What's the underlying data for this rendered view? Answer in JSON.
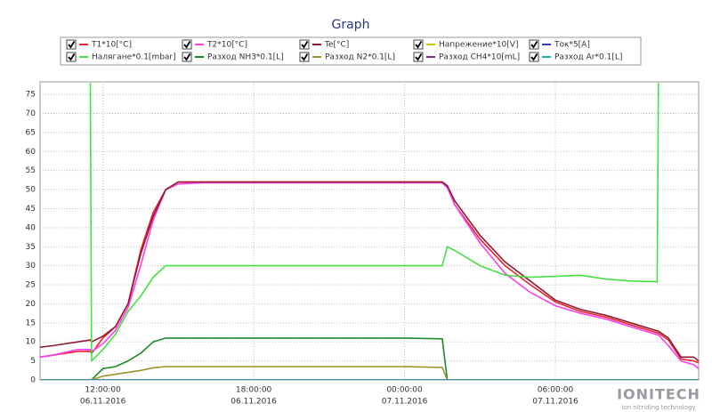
{
  "chart_data": {
    "type": "line",
    "title": "Graph",
    "x": [
      9.5,
      10,
      11,
      11.5,
      11.55,
      12,
      12.5,
      13,
      13.5,
      14,
      14.5,
      15,
      16,
      18,
      20,
      22,
      24,
      25.5,
      25.7,
      26,
      27,
      28,
      29,
      30,
      31,
      32,
      33,
      34,
      34.05,
      34.1,
      34.5,
      35,
      35.5,
      35.7
    ],
    "xlim": [
      9.5,
      35.7
    ],
    "xticks": [
      {
        "value": 12,
        "label": "12:00:00"
      },
      {
        "value": 18,
        "label": "18:00:00"
      },
      {
        "value": 24,
        "label": "00:00:00"
      },
      {
        "value": 30,
        "label": "06:00:00"
      }
    ],
    "xtick_dates": [
      "06.11.2016",
      "06.11.2016",
      "07.11.2016",
      "07.11.2016"
    ],
    "ylim": [
      0,
      78.3
    ],
    "yticks": [
      0,
      5,
      10,
      15,
      20,
      25,
      30,
      35,
      40,
      45,
      50,
      55,
      60,
      65,
      70,
      75
    ],
    "grid": true,
    "series": [
      {
        "name": "T1*10[°C]",
        "color": "#e8242c",
        "values": [
          6,
          6.5,
          7.5,
          7.5,
          7,
          11,
          14,
          20,
          34,
          44,
          50,
          52,
          52,
          52,
          52,
          52,
          52,
          52,
          51,
          46,
          37,
          30,
          25,
          20.5,
          18,
          16.5,
          14.5,
          12.5,
          12.4,
          12.3,
          10.5,
          5.5,
          5,
          4.5
        ]
      },
      {
        "name": "T2*10[°C]",
        "color": "#ff3cf0",
        "values": [
          6,
          6.5,
          8,
          8,
          7.5,
          9.5,
          13,
          19,
          30,
          42,
          50,
          51.5,
          51.8,
          51.8,
          51.8,
          51.8,
          51.8,
          51.8,
          50.5,
          46,
          36,
          28,
          23,
          19.5,
          17.5,
          16,
          14,
          12,
          11.9,
          11.8,
          9,
          5,
          4,
          3
        ]
      },
      {
        "name": "Te[°C]",
        "color": "#8e1c30",
        "values": [
          8.6,
          9,
          10,
          10.5,
          10,
          11.5,
          14,
          20,
          33,
          43,
          50,
          52,
          52,
          52,
          52,
          52,
          52,
          52,
          51,
          47,
          38,
          31,
          26,
          21,
          18.5,
          17,
          15,
          13,
          12.9,
          12.8,
          11,
          6,
          6,
          5
        ]
      },
      {
        "name": "Напрежение*10[V]",
        "color": "#c8c800",
        "values": [
          0,
          0,
          0,
          0,
          0,
          0,
          0,
          0,
          0,
          0,
          0,
          0,
          0,
          0,
          0,
          0,
          0,
          0,
          0,
          0,
          0,
          0,
          0,
          0,
          0,
          0,
          0,
          0,
          0,
          0,
          0,
          0,
          0,
          0
        ]
      },
      {
        "name": "Ток*5[A]",
        "color": "#2a3ec8",
        "values": [
          0,
          0,
          0,
          0,
          0,
          0,
          0,
          0,
          0,
          0,
          0,
          0,
          0,
          0,
          0,
          0,
          0,
          0,
          0,
          0,
          0,
          0,
          0,
          0,
          0,
          0,
          0,
          0,
          0,
          0,
          0,
          0,
          0,
          0
        ]
      },
      {
        "name": "Налягане*0.1[mbar]",
        "color": "#44e044",
        "values": [
          null,
          null,
          null,
          78,
          5,
          8,
          12,
          18,
          22,
          27,
          30,
          30,
          30,
          30,
          30,
          30,
          30,
          30,
          35,
          34,
          30,
          27.5,
          27,
          27.2,
          27.5,
          26.5,
          26,
          25.8,
          25.7,
          78,
          null,
          null,
          null,
          null
        ]
      },
      {
        "name": "Разход NH3*0.1[L]",
        "color": "#1f8a2a",
        "values": [
          0,
          0,
          0,
          0,
          0,
          3,
          3.5,
          5,
          7,
          10,
          11,
          11,
          11,
          11,
          11,
          11,
          11,
          10.8,
          0,
          0,
          0,
          0,
          0,
          0,
          0,
          0,
          0,
          0,
          0,
          0,
          0,
          0,
          0,
          0
        ]
      },
      {
        "name": "Разход N2*0.1[L]",
        "color": "#a0902a",
        "values": [
          0,
          0,
          0,
          0,
          0,
          1,
          1.5,
          2,
          2.5,
          3.2,
          3.5,
          3.5,
          3.5,
          3.5,
          3.5,
          3.5,
          3.5,
          3.3,
          0,
          0,
          0,
          0,
          0,
          0,
          0,
          0,
          0,
          0,
          0,
          0,
          0,
          0,
          0,
          0
        ]
      },
      {
        "name": "Разход CH4*10[mL]",
        "color": "#8a2a8e",
        "values": [
          0,
          0,
          0,
          0,
          0,
          0,
          0,
          0,
          0,
          0,
          0,
          0,
          0,
          0,
          0,
          0,
          0,
          0,
          0,
          0,
          0,
          0,
          0,
          0,
          0,
          0,
          0,
          0,
          0,
          0,
          0,
          0,
          0,
          0
        ]
      },
      {
        "name": "Разход Ar*0.1[L]",
        "color": "#20a8b0",
        "values": [
          0,
          0,
          0,
          0,
          0,
          0,
          0,
          0,
          0,
          0,
          0,
          0,
          0,
          0,
          0,
          0,
          0,
          0,
          0,
          0,
          0,
          0,
          0,
          0,
          0,
          0,
          0,
          0,
          0,
          0,
          0,
          0,
          0,
          0
        ]
      }
    ],
    "logo": {
      "name": "IONITECH",
      "tagline": "ion nitriding technology"
    }
  }
}
